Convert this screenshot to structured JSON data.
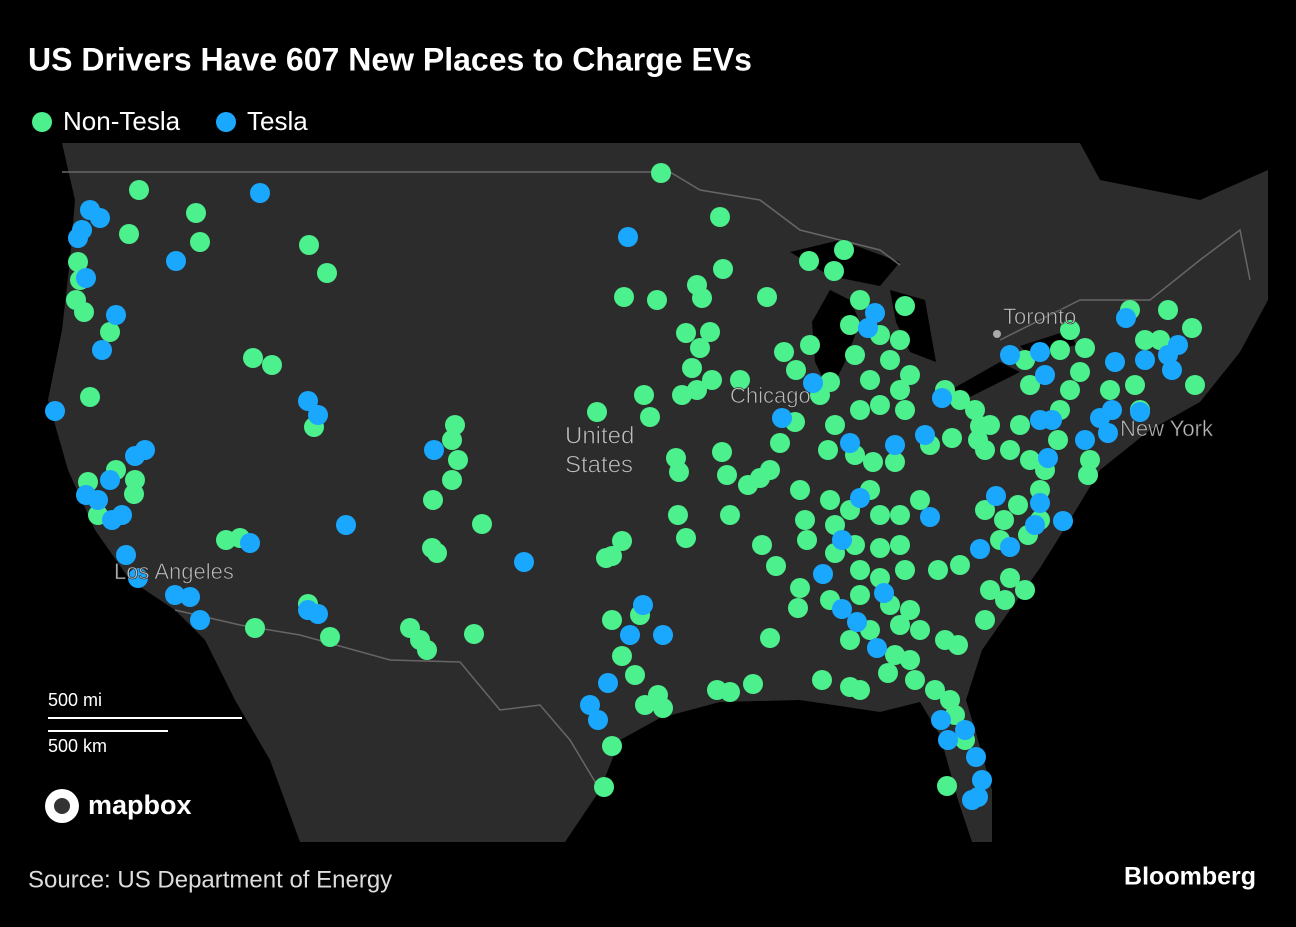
{
  "header": {
    "title": "US Drivers Have 607 New Places to Charge EVs"
  },
  "legend": [
    {
      "name": "Non-Tesla",
      "color": "#4cf08c"
    },
    {
      "name": "Tesla",
      "color": "#1aa8ff"
    }
  ],
  "map": {
    "labels": [
      "Toronto",
      "Chicago",
      "United",
      "States",
      "New York",
      "Los Angeles"
    ],
    "scale": [
      "500 mi",
      "500 km"
    ],
    "attribution": "mapbox"
  },
  "footer": {
    "source": "Source: US Department of Energy",
    "brand": "Bloomberg"
  }
}
